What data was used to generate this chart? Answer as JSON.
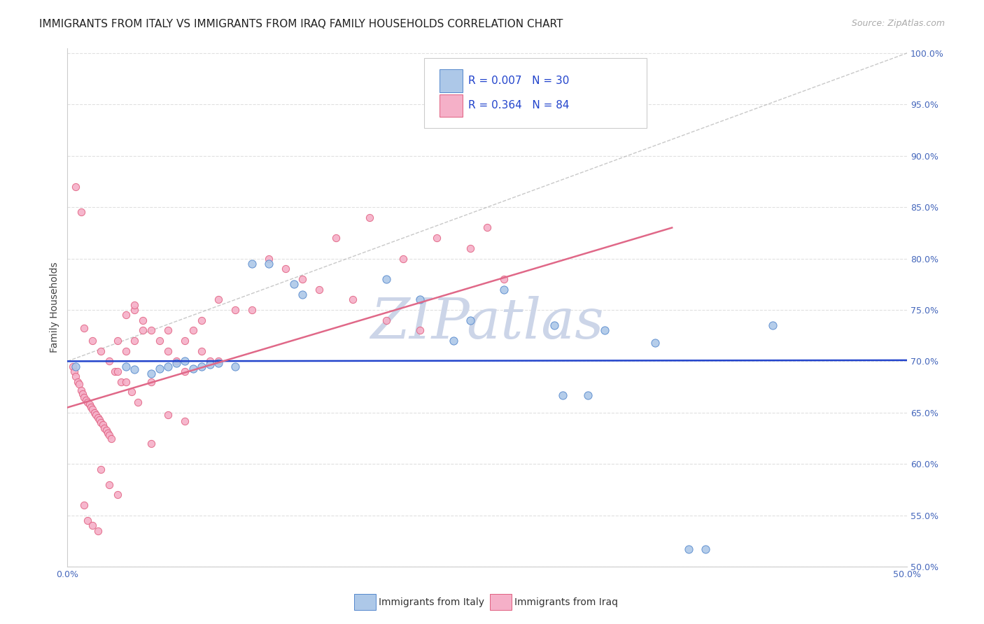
{
  "title": "IMMIGRANTS FROM ITALY VS IMMIGRANTS FROM IRAQ FAMILY HOUSEHOLDS CORRELATION CHART",
  "source": "Source: ZipAtlas.com",
  "ylabel": "Family Households",
  "xlim": [
    0.0,
    0.5
  ],
  "ylim": [
    0.5,
    1.005
  ],
  "xtick_positions": [
    0.0,
    0.05,
    0.1,
    0.15,
    0.2,
    0.25,
    0.3,
    0.35,
    0.4,
    0.45,
    0.5
  ],
  "xtick_labels_show": [
    "0.0%",
    "",
    "",
    "",
    "",
    "",
    "",
    "",
    "",
    "",
    "50.0%"
  ],
  "ytick_positions": [
    0.5,
    0.55,
    0.6,
    0.65,
    0.7,
    0.75,
    0.8,
    0.85,
    0.9,
    0.95,
    1.0
  ],
  "ytick_labels": [
    "50.0%",
    "55.0%",
    "60.0%",
    "65.0%",
    "70.0%",
    "75.0%",
    "80.0%",
    "85.0%",
    "90.0%",
    "95.0%",
    "100.0%"
  ],
  "italy_color": "#adc8e8",
  "iraq_color": "#f5b0c8",
  "italy_edge": "#5588cc",
  "iraq_edge": "#e06080",
  "trend_italy_color": "#2244cc",
  "trend_iraq_color": "#e06888",
  "diag_color": "#bbbbbb",
  "watermark": "ZIPatlas",
  "watermark_color": "#ccd5e8",
  "background_color": "#ffffff",
  "grid_color": "#dddddd",
  "title_fontsize": 11,
  "axis_label_fontsize": 10,
  "tick_color": "#4466bb",
  "legend_R_color": "#2244cc",
  "R_italy": 0.007,
  "N_italy": 30,
  "R_iraq": 0.364,
  "N_iraq": 84,
  "italy_scatter_x": [
    0.005,
    0.035,
    0.04,
    0.05,
    0.055,
    0.06,
    0.065,
    0.07,
    0.075,
    0.08,
    0.085,
    0.09,
    0.1,
    0.11,
    0.12,
    0.135,
    0.14,
    0.19,
    0.21,
    0.23,
    0.24,
    0.26,
    0.29,
    0.295,
    0.31,
    0.32,
    0.35,
    0.37,
    0.38,
    0.42
  ],
  "italy_scatter_y": [
    0.695,
    0.695,
    0.692,
    0.688,
    0.693,
    0.695,
    0.698,
    0.7,
    0.693,
    0.695,
    0.697,
    0.698,
    0.695,
    0.795,
    0.795,
    0.775,
    0.765,
    0.78,
    0.76,
    0.72,
    0.74,
    0.77,
    0.735,
    0.667,
    0.667,
    0.73,
    0.718,
    0.517,
    0.517,
    0.735
  ],
  "iraq_scatter_x": [
    0.003,
    0.004,
    0.005,
    0.006,
    0.007,
    0.008,
    0.009,
    0.01,
    0.011,
    0.012,
    0.013,
    0.014,
    0.015,
    0.016,
    0.017,
    0.018,
    0.019,
    0.02,
    0.021,
    0.022,
    0.023,
    0.024,
    0.025,
    0.026,
    0.028,
    0.03,
    0.032,
    0.035,
    0.038,
    0.04,
    0.042,
    0.045,
    0.05,
    0.055,
    0.06,
    0.06,
    0.065,
    0.07,
    0.07,
    0.075,
    0.08,
    0.08,
    0.085,
    0.09,
    0.09,
    0.1,
    0.11,
    0.12,
    0.13,
    0.14,
    0.15,
    0.16,
    0.17,
    0.18,
    0.19,
    0.2,
    0.21,
    0.22,
    0.24,
    0.25,
    0.26,
    0.005,
    0.008,
    0.01,
    0.012,
    0.015,
    0.018,
    0.02,
    0.025,
    0.03,
    0.035,
    0.04,
    0.05,
    0.06,
    0.07,
    0.01,
    0.015,
    0.02,
    0.025,
    0.03,
    0.035,
    0.04,
    0.045,
    0.05
  ],
  "iraq_scatter_y": [
    0.695,
    0.69,
    0.685,
    0.68,
    0.678,
    0.672,
    0.668,
    0.665,
    0.662,
    0.66,
    0.658,
    0.655,
    0.653,
    0.65,
    0.648,
    0.645,
    0.643,
    0.64,
    0.638,
    0.635,
    0.633,
    0.63,
    0.628,
    0.625,
    0.69,
    0.72,
    0.68,
    0.71,
    0.67,
    0.75,
    0.66,
    0.74,
    0.73,
    0.72,
    0.73,
    0.71,
    0.7,
    0.72,
    0.69,
    0.73,
    0.74,
    0.71,
    0.7,
    0.76,
    0.7,
    0.75,
    0.75,
    0.8,
    0.79,
    0.78,
    0.77,
    0.82,
    0.76,
    0.84,
    0.74,
    0.8,
    0.73,
    0.82,
    0.81,
    0.83,
    0.78,
    0.87,
    0.845,
    0.56,
    0.545,
    0.54,
    0.535,
    0.595,
    0.58,
    0.57,
    0.745,
    0.755,
    0.68,
    0.648,
    0.642,
    0.732,
    0.72,
    0.71,
    0.7,
    0.69,
    0.68,
    0.72,
    0.73,
    0.62
  ],
  "italy_trend_x": [
    0.0,
    0.5
  ],
  "italy_trend_y": [
    0.7,
    0.701
  ],
  "iraq_trend_x": [
    0.0,
    0.36
  ],
  "iraq_trend_y": [
    0.655,
    0.83
  ],
  "diag_trend_x": [
    0.0,
    0.5
  ],
  "diag_trend_y": [
    0.7,
    1.0
  ]
}
